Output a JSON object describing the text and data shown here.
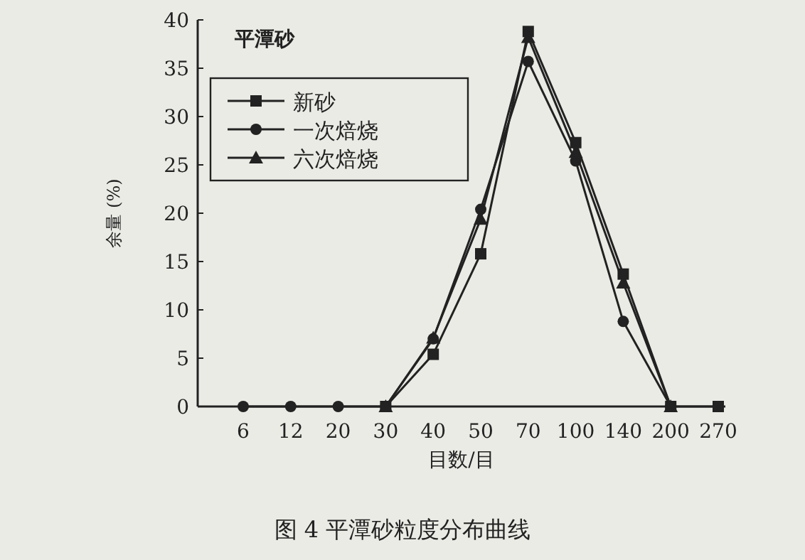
{
  "chart_data": {
    "type": "line",
    "categories": [
      "6",
      "12",
      "20",
      "30",
      "40",
      "50",
      "70",
      "100",
      "140",
      "200",
      "270"
    ],
    "series": [
      {
        "name": "新砂",
        "color": "#222222",
        "marker": "square",
        "values": [
          null,
          null,
          null,
          0,
          5.4,
          15.8,
          38.8,
          27.3,
          13.7,
          0,
          0
        ]
      },
      {
        "name": "一次焙烧",
        "color": "#222222",
        "marker": "circle",
        "values": [
          0,
          0,
          0,
          0,
          7,
          20.4,
          35.7,
          25.4,
          8.8,
          0,
          null
        ]
      },
      {
        "name": "六次焙烧",
        "color": "#222222",
        "marker": "triangle",
        "values": [
          null,
          null,
          null,
          0,
          7.1,
          19.4,
          38.2,
          26.3,
          12.8,
          0,
          null
        ]
      }
    ],
    "ylim": [
      0,
      40
    ],
    "yticks": [
      0,
      5,
      10,
      15,
      20,
      25,
      30,
      35,
      40
    ],
    "xlabel": "目数/目",
    "ylabel": "余量 (%)",
    "annotations": [
      "平潭砂",
      "图 4   平潭砂粒度分布曲线"
    ],
    "legend": "top left",
    "grid": false,
    "line_style": "solid"
  }
}
